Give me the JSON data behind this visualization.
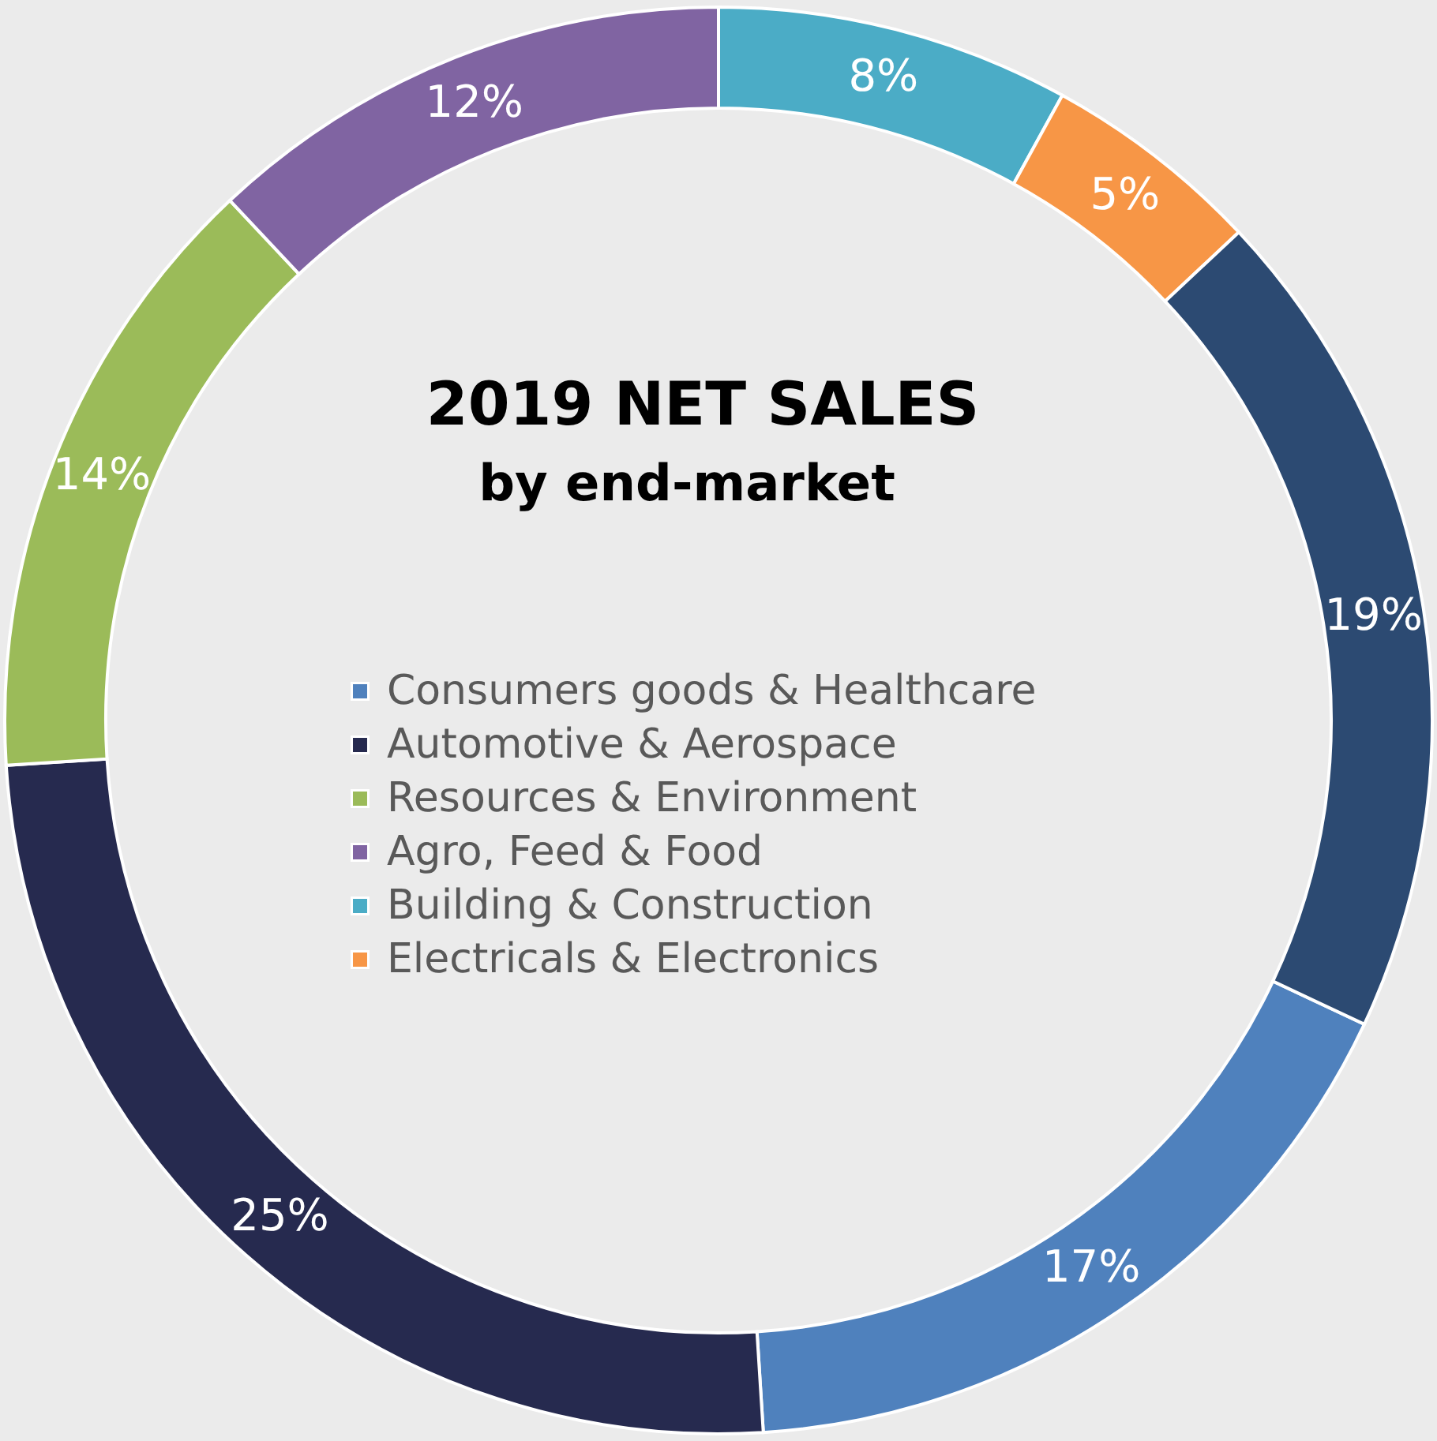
{
  "chart_data": {
    "type": "donut",
    "title": "2019 NET SALES",
    "subtitle": "by end-market",
    "categories": [
      "Consumers goods & Healthcare",
      "Automotive & Aerospace",
      "Resources & Environment",
      "Agro, Feed & Food",
      "Building & Construction",
      "Electricals & Electronics",
      null
    ],
    "values": [
      17,
      25,
      14,
      12,
      8,
      5,
      19
    ],
    "colors": [
      "#4f81bd",
      "#262a4f",
      "#9bbb59",
      "#8064a2",
      "#4bacc6",
      "#f79646",
      "#2c4a72"
    ],
    "value_labels": [
      "17%",
      "25%",
      "14%",
      "12%",
      "8%",
      "5%",
      "19%"
    ],
    "legend": "center"
  }
}
